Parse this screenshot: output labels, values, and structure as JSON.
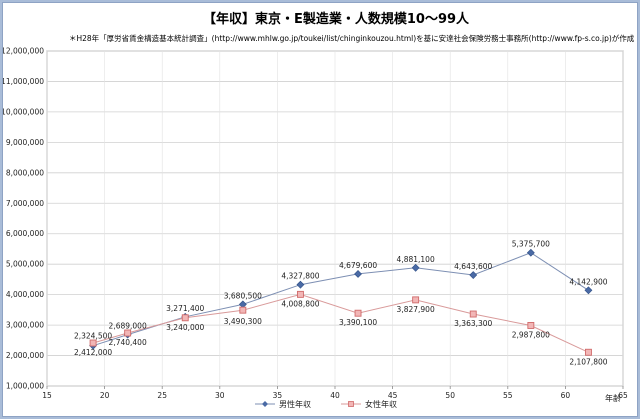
{
  "chart_data": {
    "type": "line",
    "title": "【年収】東京・E製造業・人数規模10〜99人",
    "subtitle": "＊H28年「厚労省賃金構造基本統計調査」(http://www.mhlw.go.jp/toukei/list/chinginkouzou.html)を基に安達社会保険労務士事務所(http://www.fp-s.co.jp)が作成",
    "xlabel": "年齢",
    "ylabel": "",
    "xlim": [
      15,
      65
    ],
    "ylim": [
      1000000,
      12000000
    ],
    "x_ticks": [
      15,
      20,
      25,
      30,
      35,
      40,
      45,
      50,
      55,
      60,
      65
    ],
    "y_ticks": [
      1000000,
      2000000,
      3000000,
      4000000,
      5000000,
      6000000,
      7000000,
      8000000,
      9000000,
      10000000,
      11000000,
      12000000
    ],
    "grid": true,
    "legend_position": "bottom",
    "series": [
      {
        "name": "男性年収",
        "color": "#4a6aa5",
        "marker": "diamond",
        "x": [
          19,
          22,
          27,
          32,
          37,
          42,
          47,
          52,
          57,
          62
        ],
        "values": [
          2324500,
          2689000,
          3271400,
          3680500,
          4327800,
          4679600,
          4881100,
          4643600,
          5375700,
          4142900
        ],
        "labels": [
          "2,324,500",
          "2,689,000",
          "3,271,400",
          "3,680,500",
          "4,327,800",
          "4,679,600",
          "4,881,100",
          "4,643,600",
          "5,375,700",
          "4,142,900"
        ]
      },
      {
        "name": "女性年収",
        "color": "#d06a6a",
        "marker": "square",
        "x": [
          19,
          22,
          27,
          32,
          37,
          42,
          47,
          52,
          57,
          62
        ],
        "values": [
          2412000,
          2740400,
          3240000,
          3490300,
          4008800,
          3390100,
          3827900,
          3363300,
          2987800,
          2107800
        ],
        "labels": [
          "2,412,000",
          "2,740,400",
          "3,240,000",
          "3,490,300",
          "4,008,800",
          "3,390,100",
          "3,827,900",
          "3,363,300",
          "2,987,800",
          "2,107,800"
        ]
      }
    ]
  }
}
